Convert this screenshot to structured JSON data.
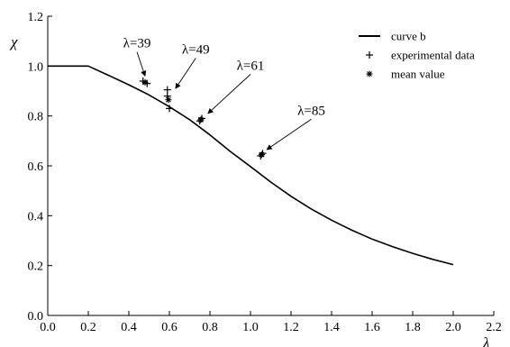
{
  "chart_data": {
    "type": "line",
    "title": "",
    "xlabel": "λ",
    "ylabel": "χ",
    "xlim": [
      0.0,
      2.2
    ],
    "ylim": [
      0.0,
      1.2
    ],
    "x_ticks": [
      0.0,
      0.2,
      0.4,
      0.6,
      0.8,
      1.0,
      1.2,
      1.4,
      1.6,
      1.8,
      2.0,
      2.2
    ],
    "x_tick_labels": [
      "0.0",
      "0.2",
      "0.4",
      "0.6",
      "0.8",
      "1.0",
      "1.2",
      "1.4",
      "1.6",
      "1.8",
      "2.0",
      "2.2"
    ],
    "y_ticks": [
      0.0,
      0.2,
      0.4,
      0.6,
      0.8,
      1.0,
      1.2
    ],
    "y_tick_labels": [
      "0.0",
      "0.2",
      "0.4",
      "0.6",
      "0.8",
      "1.0",
      "1.2"
    ],
    "grid": false,
    "legend_position": "top-right",
    "series": [
      {
        "name": "curve b",
        "kind": "line",
        "color": "#000000",
        "x": [
          0.0,
          0.2,
          0.3,
          0.4,
          0.5,
          0.6,
          0.7,
          0.8,
          0.9,
          1.0,
          1.1,
          1.2,
          1.3,
          1.4,
          1.5,
          1.6,
          1.7,
          1.8,
          1.9,
          2.0
        ],
        "y": [
          1.0,
          1.0,
          0.963,
          0.925,
          0.884,
          0.837,
          0.785,
          0.724,
          0.658,
          0.597,
          0.535,
          0.478,
          0.427,
          0.382,
          0.342,
          0.306,
          0.276,
          0.249,
          0.225,
          0.204
        ]
      },
      {
        "name": "experimental data",
        "kind": "marker",
        "marker": "+",
        "color": "#000000",
        "x": [
          0.47,
          0.49,
          0.59,
          0.59,
          0.6,
          0.75,
          0.76,
          1.05,
          1.06
        ],
        "y": [
          0.94,
          0.93,
          0.905,
          0.88,
          0.83,
          0.78,
          0.79,
          0.64,
          0.65
        ]
      },
      {
        "name": "mean value",
        "kind": "marker",
        "marker": "*",
        "color": "#000000",
        "x": [
          0.48,
          0.595,
          0.755,
          1.055
        ],
        "y": [
          0.935,
          0.865,
          0.785,
          0.645
        ]
      }
    ],
    "annotations": [
      {
        "text": "λ=39",
        "x": 0.44,
        "y": 1.075,
        "target_x": 0.48,
        "target_y": 0.96
      },
      {
        "text": "λ=49",
        "x": 0.73,
        "y": 1.05,
        "target_x": 0.63,
        "target_y": 0.91
      },
      {
        "text": "λ=61",
        "x": 1.0,
        "y": 0.985,
        "target_x": 0.79,
        "target_y": 0.81
      },
      {
        "text": "λ=85",
        "x": 1.3,
        "y": 0.805,
        "target_x": 1.08,
        "target_y": 0.665
      }
    ]
  }
}
